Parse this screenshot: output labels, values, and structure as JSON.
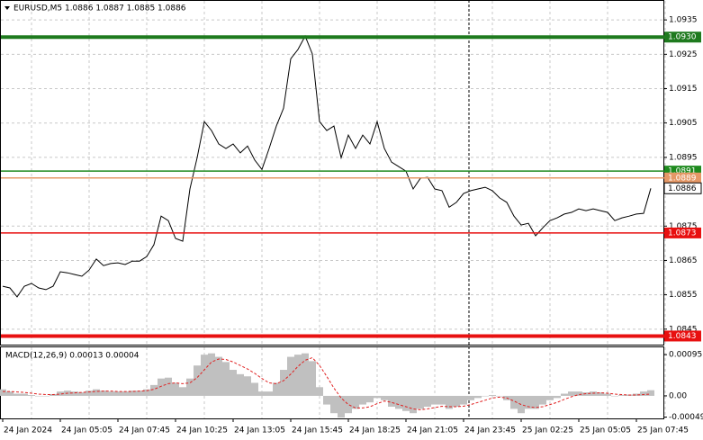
{
  "chart_data": [
    {
      "type": "line",
      "title": "EURUSD,M5  1.0886 1.0887 1.0885 1.0886",
      "color": "#000000",
      "grid": true,
      "ylim": [
        1.08405,
        1.09408
      ],
      "yticks": [
        1.0935,
        1.0925,
        1.0915,
        1.0905,
        1.0895,
        1.0875,
        1.0865,
        1.0855,
        1.0845
      ],
      "categories": [
        "24 Jan 2024",
        null,
        null,
        null,
        null,
        null,
        null,
        null,
        "24 Jan 05:05",
        null,
        null,
        null,
        null,
        null,
        null,
        null,
        "24 Jan 07:45",
        null,
        null,
        null,
        null,
        null,
        null,
        null,
        "24 Jan 10:25",
        null,
        null,
        null,
        null,
        null,
        null,
        null,
        "24 Jan 13:05",
        null,
        null,
        null,
        null,
        null,
        null,
        null,
        "24 Jan 15:45",
        null,
        null,
        null,
        null,
        null,
        null,
        null,
        "24 Jan 18:25",
        null,
        null,
        null,
        null,
        null,
        null,
        null,
        "24 Jan 21:05",
        null,
        null,
        null,
        null,
        null,
        null,
        null,
        "24 Jan 23:45",
        null,
        null,
        null,
        null,
        null,
        null,
        null,
        "25 Jan 02:25",
        null,
        null,
        null,
        null,
        null,
        null,
        null,
        "25 Jan 05:05",
        null,
        null,
        null,
        null,
        null,
        null,
        null,
        "25 Jan 07:45",
        null,
        null
      ],
      "values": [
        1.08575,
        1.0857,
        1.08544,
        1.08575,
        1.08583,
        1.0857,
        1.08565,
        1.08575,
        1.08617,
        1.08614,
        1.08609,
        1.08604,
        1.08622,
        1.08654,
        1.08635,
        1.08641,
        1.08643,
        1.08638,
        1.08648,
        1.08648,
        1.08661,
        1.08696,
        1.08779,
        1.08766,
        1.08714,
        1.08706,
        1.08858,
        1.08949,
        1.09054,
        1.09028,
        1.08989,
        1.08976,
        1.08989,
        1.08963,
        1.08983,
        1.08942,
        1.08915,
        1.08976,
        1.09041,
        1.09093,
        1.09237,
        1.09264,
        1.09303,
        1.09251,
        1.09054,
        1.09028,
        1.09041,
        1.08949,
        1.09015,
        1.08976,
        1.09015,
        1.08989,
        1.09054,
        1.08976,
        1.08936,
        1.08923,
        1.0891,
        1.08858,
        1.08889,
        1.08892,
        1.08858,
        1.08853,
        1.08805,
        1.08819,
        1.08845,
        1.08853,
        1.08858,
        1.08863,
        1.08853,
        1.08832,
        1.08819,
        1.08779,
        1.08753,
        1.08758,
        1.08722,
        1.08745,
        1.08766,
        1.08774,
        1.08785,
        1.0879,
        1.088,
        1.08795,
        1.088,
        1.08795,
        1.0879,
        1.08766,
        1.08774,
        1.08779,
        1.08785,
        1.08787,
        1.0886
      ],
      "levels": [
        {
          "value": 1.093,
          "label": "1.0930",
          "color": "#1e7a1e",
          "thick": true
        },
        {
          "value": 1.0891,
          "label": "1.0891",
          "color": "#1e8a1e",
          "thick": false
        },
        {
          "value": 1.0889,
          "label": "1.0889",
          "color": "#e59866",
          "thick": false
        },
        {
          "value": 1.0873,
          "label": "1.0873",
          "color": "#e81010",
          "thick": false
        },
        {
          "value": 1.0843,
          "label": "1.0843",
          "color": "#e81010",
          "thick": true
        }
      ],
      "last_price": {
        "value": 1.0886,
        "label": "1.0886"
      }
    },
    {
      "type": "bar",
      "title": "MACD(12,26,9) 0.00013 0.00004",
      "grid": true,
      "ylim": [
        -0.00052,
        0.00114
      ],
      "yticks": [
        0.00095,
        {
          "value": 0,
          "label": "0.00"
        },
        -0.00049
      ],
      "color": "#c0c0c0",
      "signal_color": "#e02020",
      "values": [
        0.00015,
        0.0001,
        5e-05,
        5e-05,
        2e-05,
        0,
        0,
        4e-05,
        0.0001,
        0.00012,
        0.0001,
        8e-05,
        0.00012,
        0.00015,
        0.00012,
        0.0001,
        0.0001,
        0.0001,
        0.00012,
        0.00012,
        0.00015,
        0.00025,
        0.0004,
        0.00042,
        0.0003,
        0.0002,
        0.0004,
        0.0007,
        0.00095,
        0.00098,
        0.0009,
        0.00078,
        0.0006,
        0.0005,
        0.00045,
        0.0003,
        0.0001,
        0.0001,
        0.0003,
        0.0006,
        0.0009,
        0.00095,
        0.00098,
        0.0008,
        0.0002,
        -0.0002,
        -0.0004,
        -0.0005,
        -0.0004,
        -0.0003,
        -0.0002,
        -0.00015,
        -5e-05,
        -0.0001,
        -0.00025,
        -0.0003,
        -0.00035,
        -0.0004,
        -0.0003,
        -0.00025,
        -0.0002,
        -0.0002,
        -0.0003,
        -0.00025,
        -0.0002,
        -0.0001,
        -5e-05,
        0,
        2e-05,
        0,
        -0.0001,
        -0.0003,
        -0.0004,
        -0.0003,
        -0.0003,
        -0.0002,
        -0.0001,
        -5e-05,
        5e-05,
        0.0001,
        0.0001,
        8e-05,
        0.0001,
        8e-05,
        5e-05,
        0,
        2e-05,
        3e-05,
        5e-05,
        0.0001,
        0.00013
      ],
      "signal": [
        0.0001,
        0.0001,
        9e-05,
        8e-05,
        6e-05,
        4e-05,
        3e-05,
        3e-05,
        4e-05,
        6e-05,
        7e-05,
        8e-05,
        9e-05,
        0.0001,
        0.00011,
        0.00011,
        0.0001,
        0.0001,
        0.0001,
        0.00011,
        0.00012,
        0.00015,
        0.00022,
        0.00028,
        0.0003,
        0.00028,
        0.0003,
        0.00042,
        0.0006,
        0.00078,
        0.00085,
        0.00084,
        0.00078,
        0.0007,
        0.00062,
        0.00052,
        0.0004,
        0.0003,
        0.00028,
        0.00035,
        0.0005,
        0.00068,
        0.00082,
        0.00088,
        0.0007,
        0.00045,
        0.00018,
        -5e-05,
        -0.0002,
        -0.00028,
        -0.00028,
        -0.00025,
        -0.00018,
        -0.00012,
        -0.00015,
        -0.0002,
        -0.00025,
        -0.0003,
        -0.00032,
        -0.0003,
        -0.00027,
        -0.00024,
        -0.00025,
        -0.00025,
        -0.00024,
        -0.0002,
        -0.00015,
        -0.0001,
        -5e-05,
        -3e-05,
        -5e-05,
        -0.00012,
        -0.0002,
        -0.00025,
        -0.00027,
        -0.00025,
        -0.0002,
        -0.00015,
        -8e-05,
        -2e-05,
        3e-05,
        5e-05,
        6e-05,
        7e-05,
        6e-05,
        4e-05,
        3e-05,
        2e-05,
        2e-05,
        3e-05,
        4e-05
      ]
    }
  ]
}
